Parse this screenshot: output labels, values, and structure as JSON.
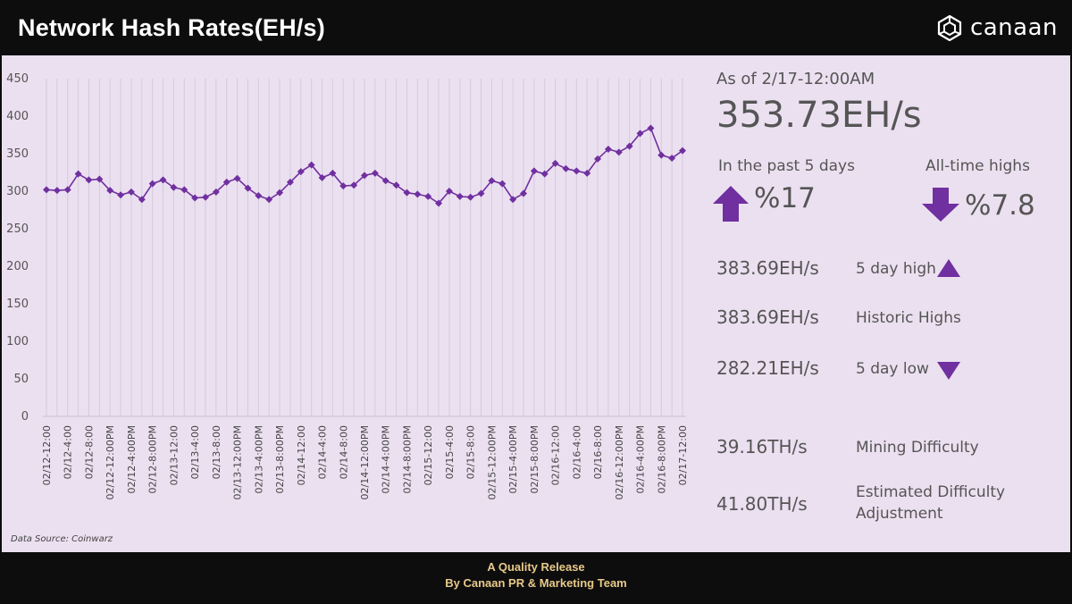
{
  "header": {
    "title": "Network Hash Rates(EH/s)",
    "logo_text": "canaan"
  },
  "footer": {
    "line1": "A Quality Release",
    "line2": "By Canaan PR & Marketing Team"
  },
  "source": "Data Source: Coinwarz",
  "summary": {
    "as_of": "As of 2/17-12:00AM",
    "current": "353.73EH/s",
    "past5_label": "In the past 5 days",
    "past5_value": "%17",
    "ath_label": "All-time highs",
    "ath_value": "%7.8",
    "high5_value": "383.69EH/s",
    "high5_label": "5 day high",
    "historic_value": "383.69EH/s",
    "historic_label": "Historic Highs",
    "low5_value": "282.21EH/s",
    "low5_label": "5 day low",
    "difficulty_value": "39.16TH/s",
    "difficulty_label": "Mining Difficulty",
    "est_value": "41.80TH/s",
    "est_label_1": "Estimated Difficulty",
    "est_label_2": "Adjustment"
  },
  "colors": {
    "accent": "#7030a0",
    "panel": "#ebe0f0",
    "footer_text": "#e8c98a"
  },
  "chart_data": {
    "type": "line",
    "ylim": [
      0,
      450
    ],
    "yticks": [
      0,
      50,
      100,
      150,
      200,
      250,
      300,
      350,
      400,
      450
    ],
    "categories": [
      "02/12-12:00",
      "",
      "02/12-4:00",
      "",
      "02/12-8:00",
      "",
      "02/12-12:00PM",
      "",
      "02/12-4:00PM",
      "",
      "02/12-8:00PM",
      "",
      "02/13-12:00",
      "",
      "02/13-4:00",
      "",
      "02/13-8:00",
      "",
      "02/13-12:00PM",
      "",
      "02/13-4:00PM",
      "",
      "02/13-8:00PM",
      "",
      "02/14-12:00",
      "",
      "02/14-4:00",
      "",
      "02/14-8:00",
      "",
      "02/14-12:00PM",
      "",
      "02/14-4:00PM",
      "",
      "02/14-8:00PM",
      "",
      "02/15-12:00",
      "",
      "02/15-4:00",
      "",
      "02/15-8:00",
      "",
      "02/15-12:00PM",
      "",
      "02/15-4:00PM",
      "",
      "02/15-8:00PM",
      "",
      "02/16-12:00",
      "",
      "02/16-4:00",
      "",
      "02/16-8:00",
      "",
      "02/16-12:00PM",
      "",
      "02/16-4:00PM",
      "",
      "02/16-8:00PM",
      "",
      "02/17-12:00"
    ],
    "series": [
      {
        "values": [
          302,
          301,
          302,
          323,
          315,
          316,
          301,
          295,
          299,
          289,
          310,
          315,
          305,
          302,
          291,
          292,
          299,
          312,
          317,
          304,
          294,
          289,
          298,
          312,
          326,
          335,
          318,
          324,
          307,
          308,
          321,
          324,
          314,
          308,
          298,
          296,
          293,
          284,
          300,
          293,
          292,
          297,
          314,
          310,
          289,
          297,
          327,
          323,
          337,
          330,
          327,
          324,
          343,
          356,
          352,
          360,
          377,
          384,
          348,
          344,
          354
        ]
      }
    ]
  }
}
